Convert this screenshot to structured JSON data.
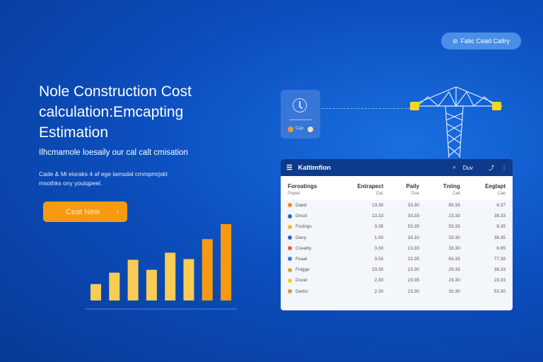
{
  "hero": {
    "title": "Nole Construction Cost calculation:Emcapting Estimation",
    "subtitle": "Ilhcmamole loesaily our cal calt cmisation",
    "description": "Cade & Mi eisraks 4 af ege lamsdal cmmpmrjskt msothks ony youtqpeel.",
    "cta_label": "Ceat New",
    "cta_icon": "chevron-right-icon"
  },
  "pill": {
    "icon": "leaf-icon",
    "label": "Fatic Cead Cafiry"
  },
  "clock_card": {
    "icon": "clock-icon",
    "label": "Cap",
    "colors": [
      "#f59a35",
      "#f4ecc8"
    ]
  },
  "panel": {
    "title": "Kaltimfion",
    "search_label": "Duv",
    "columns": [
      {
        "title": "Foroatings",
        "sub": "Pojeet"
      },
      {
        "title": "Entrapect",
        "sub": "Cac"
      },
      {
        "title": "Paily",
        "sub": "Doe"
      },
      {
        "title": "Tniing",
        "sub": "Cait"
      },
      {
        "title": "Eeglapt",
        "sub": "Cae"
      }
    ],
    "rows": [
      {
        "color": "#f08a2a",
        "name": "Daed",
        "v": [
          "13.30",
          "33.30",
          "83.33",
          "6.37"
        ]
      },
      {
        "color": "#2f64c8",
        "name": "Dnsst",
        "v": [
          "13.33",
          "33.33",
          "23.33",
          "38.33"
        ]
      },
      {
        "color": "#f5b928",
        "name": "Foclngs",
        "v": [
          "3.35",
          "53.35",
          "53.33",
          "6.35"
        ]
      },
      {
        "color": "#3a5fc0",
        "name": "Diery",
        "v": [
          "1.00",
          "33.33",
          "33.30",
          "38.35"
        ]
      },
      {
        "color": "#e06050",
        "name": "Creatity",
        "v": [
          "3.30",
          "13.33",
          "33.30",
          "6.95"
        ]
      },
      {
        "color": "#3b7be0",
        "name": "Feaal",
        "v": [
          "3.50",
          "23.35",
          "63.33",
          "77.39"
        ]
      },
      {
        "color": "#d8a830",
        "name": "Fnigge",
        "v": [
          "23.30",
          "23.30",
          "29.33",
          "38.33"
        ]
      },
      {
        "color": "#f5c830",
        "name": "Dsnel",
        "v": [
          "2.30",
          "23.35",
          "23.30",
          "23.33"
        ]
      },
      {
        "color": "#f08a3a",
        "name": "Dedor",
        "v": [
          "2.30",
          "23.30",
          "33.30",
          "53.30"
        ]
      }
    ]
  },
  "chart_data": {
    "type": "bar",
    "values": [
      23,
      39,
      57,
      43,
      67,
      58,
      86,
      107
    ],
    "highlight_colors": [
      "#f9cc55",
      "#f9cc55",
      "#f9cc55",
      "#f9cc55",
      "#f9cc55",
      "#f9cc55",
      "#f79a12",
      "#f79a12"
    ]
  }
}
